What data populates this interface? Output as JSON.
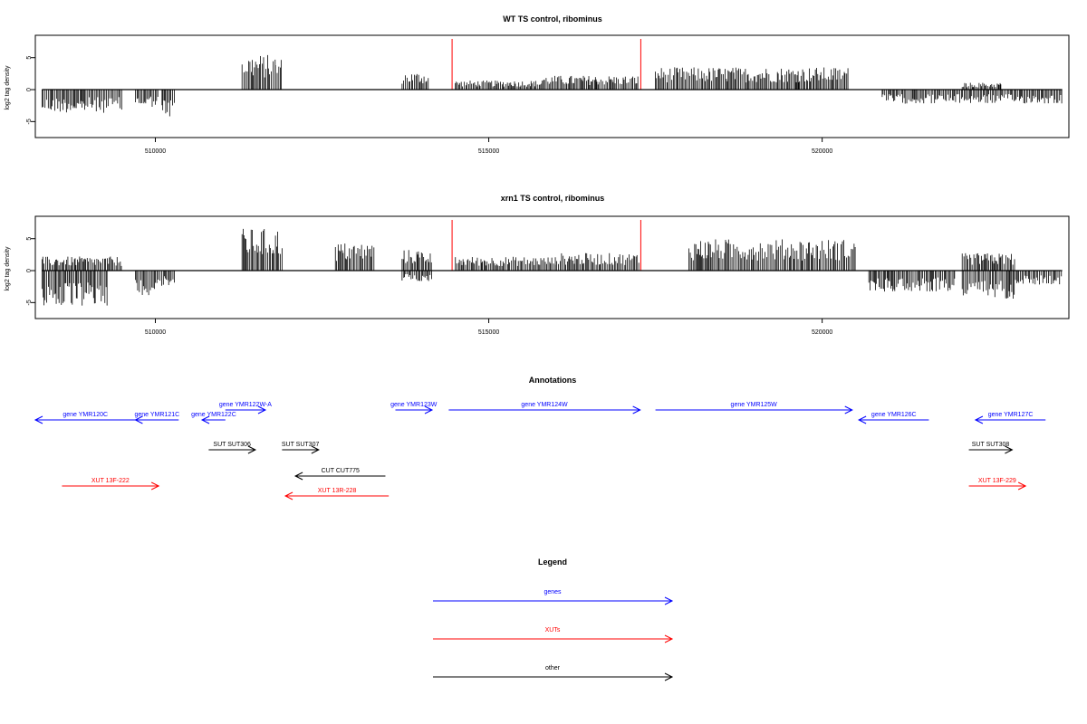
{
  "colors": {
    "gene": "#0000ff",
    "xut": "#ff0000",
    "other": "#000000",
    "marker": "#ff0000",
    "signal": "#000000"
  },
  "chart_data": [
    {
      "type": "bar",
      "title": "WT TS control, ribominus",
      "ylabel": "log2 tag density",
      "xlabel": "",
      "xlim": [
        508200,
        523700
      ],
      "ylim": [
        -7.5,
        8.5
      ],
      "xticks": [
        510000,
        515000,
        520000
      ],
      "xtick_labels": [
        "510000",
        "515000",
        "520000"
      ],
      "yticks": [
        -5,
        0,
        5
      ],
      "ytick_labels": [
        "-5",
        "0",
        "5"
      ],
      "markers_x": [
        514450,
        517280
      ],
      "regions": [
        {
          "x": [
            508300,
            509500
          ],
          "amp": 3.3,
          "sign": -1
        },
        {
          "x": [
            509700,
            510050
          ],
          "amp": 2.5,
          "sign": -1
        },
        {
          "x": [
            510100,
            510300
          ],
          "amp": 4.0,
          "sign": -1
        },
        {
          "x": [
            511300,
            511800
          ],
          "amp": 5.0,
          "sign": 1
        },
        {
          "x": [
            511800,
            511900
          ],
          "amp": 4.5,
          "sign": 1
        },
        {
          "x": [
            513700,
            514100
          ],
          "amp": 2.5,
          "sign": 1
        },
        {
          "x": [
            514500,
            515800
          ],
          "amp": 1.3,
          "sign": 1
        },
        {
          "x": [
            515800,
            517250
          ],
          "amp": 2.0,
          "sign": 1
        },
        {
          "x": [
            517500,
            520400
          ],
          "amp": 3.2,
          "sign": 1
        },
        {
          "x": [
            520900,
            523600
          ],
          "amp": 2.0,
          "sign": -1
        },
        {
          "x": [
            522100,
            522700
          ],
          "amp": 1.0,
          "sign": 1
        }
      ]
    },
    {
      "type": "bar",
      "title": "xrn1 TS control, ribominus",
      "ylabel": "log2 tag density",
      "xlabel": "",
      "xlim": [
        508200,
        523700
      ],
      "ylim": [
        -7.5,
        8.5
      ],
      "xticks": [
        510000,
        515000,
        520000
      ],
      "xtick_labels": [
        "510000",
        "515000",
        "520000"
      ],
      "yticks": [
        -5,
        0,
        5
      ],
      "ytick_labels": [
        "-5",
        "0",
        "5"
      ],
      "markers_x": [
        514450,
        517280
      ],
      "regions": [
        {
          "x": [
            508300,
            509300
          ],
          "amp": 5.2,
          "sign": -1
        },
        {
          "x": [
            508300,
            509500
          ],
          "amp": 2.0,
          "sign": 1
        },
        {
          "x": [
            509700,
            510000
          ],
          "amp": 3.5,
          "sign": -1
        },
        {
          "x": [
            510000,
            510300
          ],
          "amp": 2.5,
          "sign": -1
        },
        {
          "x": [
            511300,
            511900
          ],
          "amp": 6.0,
          "sign": 1
        },
        {
          "x": [
            512700,
            513300
          ],
          "amp": 4.0,
          "sign": 1
        },
        {
          "x": [
            513700,
            514150
          ],
          "amp": 3.0,
          "sign": 1
        },
        {
          "x": [
            513700,
            514150
          ],
          "amp": 1.5,
          "sign": -1
        },
        {
          "x": [
            514500,
            516000
          ],
          "amp": 2.0,
          "sign": 1
        },
        {
          "x": [
            516000,
            517250
          ],
          "amp": 2.5,
          "sign": 1
        },
        {
          "x": [
            518000,
            520500
          ],
          "amp": 4.5,
          "sign": 1
        },
        {
          "x": [
            520700,
            522000
          ],
          "amp": 3.0,
          "sign": -1
        },
        {
          "x": [
            522100,
            522900
          ],
          "amp": 4.0,
          "sign": -1
        },
        {
          "x": [
            522100,
            522900
          ],
          "amp": 2.5,
          "sign": 1
        },
        {
          "x": [
            522900,
            523600
          ],
          "amp": 2.0,
          "sign": -1
        }
      ]
    }
  ],
  "annotations": {
    "title": "Annotations",
    "features": [
      {
        "label": "gene YMR120C",
        "type": "gene",
        "strand": "-",
        "start": 508200,
        "end": 509700,
        "row": 1
      },
      {
        "label": "gene YMR121C",
        "type": "gene",
        "strand": "-",
        "start": 509700,
        "end": 510350,
        "row": 1
      },
      {
        "label": "gene YMR122C",
        "type": "gene",
        "strand": "-",
        "start": 510700,
        "end": 511050,
        "row": 1
      },
      {
        "label": "gene YMR122W-A",
        "type": "gene",
        "strand": "+",
        "start": 511050,
        "end": 511650,
        "row": 0
      },
      {
        "label": "gene YMR123W",
        "type": "gene",
        "strand": "+",
        "start": 513600,
        "end": 514150,
        "row": 0
      },
      {
        "label": "gene YMR124W",
        "type": "gene",
        "strand": "+",
        "start": 514400,
        "end": 517270,
        "row": 0
      },
      {
        "label": "gene YMR125W",
        "type": "gene",
        "strand": "+",
        "start": 517500,
        "end": 520450,
        "row": 0
      },
      {
        "label": "gene YMR126C",
        "type": "gene",
        "strand": "-",
        "start": 520550,
        "end": 521600,
        "row": 1
      },
      {
        "label": "gene YMR127C",
        "type": "gene",
        "strand": "-",
        "start": 522300,
        "end": 523350,
        "row": 1
      },
      {
        "label": "SUT SUT306",
        "type": "other",
        "strand": "+",
        "start": 510800,
        "end": 511500,
        "row": 2
      },
      {
        "label": "SUT SUT307",
        "type": "other",
        "strand": "+",
        "start": 511900,
        "end": 512450,
        "row": 2
      },
      {
        "label": "SUT SUT308",
        "type": "other",
        "strand": "+",
        "start": 522200,
        "end": 522850,
        "row": 2
      },
      {
        "label": "CUT CUT775",
        "type": "other",
        "strand": "-",
        "start": 512100,
        "end": 513450,
        "row": 3
      },
      {
        "label": "XUT 13F-222",
        "type": "xut",
        "strand": "+",
        "start": 508600,
        "end": 510050,
        "row": 4
      },
      {
        "label": "XUT 13R-228",
        "type": "xut",
        "strand": "-",
        "start": 511950,
        "end": 513500,
        "row": 5
      },
      {
        "label": "XUT 13F-229",
        "type": "xut",
        "strand": "+",
        "start": 522200,
        "end": 523050,
        "row": 4
      }
    ]
  },
  "legend": {
    "title": "Legend",
    "items": [
      {
        "label": "genes",
        "type": "gene"
      },
      {
        "label": "XUTs",
        "type": "xut"
      },
      {
        "label": "other",
        "type": "other"
      }
    ]
  }
}
